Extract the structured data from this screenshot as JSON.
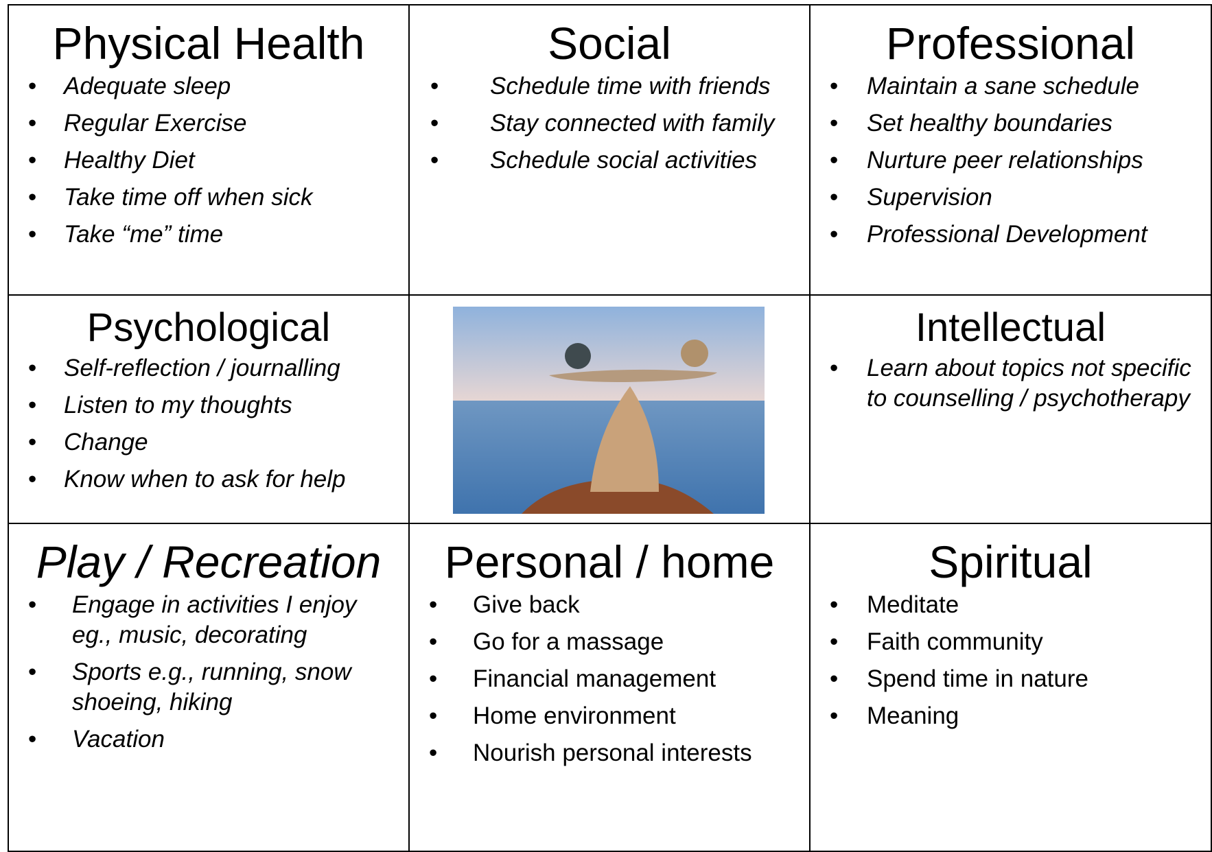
{
  "cells": [
    {
      "title": "Physical Health",
      "items": [
        "Adequate sleep",
        "Regular Exercise",
        "Healthy Diet",
        "Take time off when sick",
        "Take “me” time"
      ]
    },
    {
      "title": "Social",
      "items": [
        "Schedule time with friends",
        "Stay connected with family",
        "Schedule social activities"
      ]
    },
    {
      "title": "Professional",
      "items": [
        "Maintain a sane schedule",
        "Set healthy boundaries",
        "Nurture peer relationships",
        "Supervision",
        "Professional Development"
      ]
    },
    {
      "title": "Psychological",
      "items": [
        "Self-reflection / journalling",
        "Listen to my thoughts",
        "Change",
        "Know when to ask for help"
      ]
    },
    {
      "title": "Intellectual",
      "items": [
        "Learn about topics not specific to counselling / psychotherapy"
      ]
    },
    {
      "title": "Play / Recreation",
      "items": [
        "Engage in activities I enjoy eg., music, decorating",
        "Sports e.g., running, snow shoeing, hiking",
        "Vacation"
      ]
    },
    {
      "title": "Personal / home",
      "items": [
        "Give back",
        "Go for a massage",
        "Financial management",
        "Home environment",
        "Nourish personal interests"
      ]
    },
    {
      "title": "Spiritual",
      "items": [
        "Meditate",
        "Faith community",
        "Spend time in nature",
        "Meaning"
      ]
    }
  ]
}
